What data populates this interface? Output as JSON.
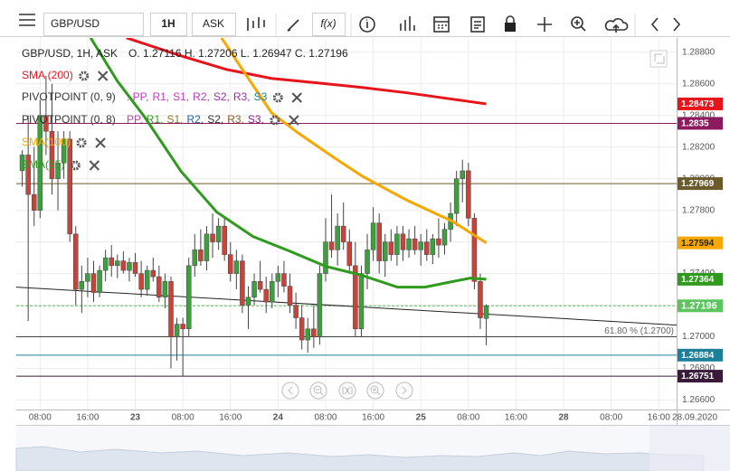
{
  "toolbar": {
    "symbol": "GBP/USD",
    "interval": "1H",
    "side": "ASK",
    "function": "f(x)"
  },
  "chart_data": {
    "type": "candlestick",
    "header": "GBP/USD, 1H, ASK",
    "ohlc_text": "O. 1.27116 H. 1.27206 L. 1.26947 C. 1.27196",
    "up_color": "#3f9e3f",
    "down_color": "#c9433a",
    "xlim": [
      4,
      115
    ],
    "ylim": [
      1.2654,
      1.2889
    ],
    "xticks": [
      {
        "value": 8,
        "label": "08:00"
      },
      {
        "value": 16,
        "label": "16:00"
      },
      {
        "value": 24,
        "label": "23"
      },
      {
        "value": 32,
        "label": "08:00"
      },
      {
        "value": 40,
        "label": "16:00"
      },
      {
        "value": 48,
        "label": "24"
      },
      {
        "value": 56,
        "label": "08:00"
      },
      {
        "value": 64,
        "label": "16:00"
      },
      {
        "value": 72,
        "label": "25"
      },
      {
        "value": 80,
        "label": "08:00"
      },
      {
        "value": 88,
        "label": "16:00"
      },
      {
        "value": 96,
        "label": "28"
      },
      {
        "value": 104,
        "label": "08:00"
      },
      {
        "value": 112,
        "label": "16:00"
      }
    ],
    "date_label": "28.09.2020",
    "yticks": [
      {
        "value": 1.266,
        "label": "1.26600"
      },
      {
        "value": 1.268,
        "label": "1.26800"
      },
      {
        "value": 1.27,
        "label": "1.27000"
      },
      {
        "value": 1.272,
        "label": "1.27200"
      },
      {
        "value": 1.274,
        "label": "1.27400"
      },
      {
        "value": 1.276,
        "label": "1.27600"
      },
      {
        "value": 1.278,
        "label": "1.27800"
      },
      {
        "value": 1.28,
        "label": "1.28000"
      },
      {
        "value": 1.282,
        "label": "1.28200"
      },
      {
        "value": 1.284,
        "label": "1.28400"
      },
      {
        "value": 1.286,
        "label": "1.28600"
      },
      {
        "value": 1.288,
        "label": "1.28800"
      }
    ],
    "grid": true,
    "candles": {
      "x": [
        5,
        6,
        7,
        8,
        9,
        10,
        11,
        12,
        13,
        14,
        15,
        16,
        17,
        18,
        19,
        20,
        21,
        22,
        23,
        24,
        25,
        26,
        27,
        28,
        29,
        30,
        31,
        32,
        33,
        34,
        35,
        36,
        37,
        38,
        39,
        40,
        41,
        42,
        43,
        44,
        45,
        46,
        47,
        48,
        49,
        50,
        51,
        52,
        53,
        54,
        55,
        56,
        57,
        58,
        59,
        60,
        61,
        62,
        63,
        64,
        65,
        66,
        67,
        68,
        69,
        70,
        71,
        72,
        73,
        74,
        75,
        76,
        77,
        78,
        79,
        80,
        81,
        82,
        83
      ],
      "open": [
        1.2805,
        1.2815,
        1.279,
        1.278,
        1.284,
        1.283,
        1.28,
        1.281,
        1.2825,
        1.2765,
        1.273,
        1.2735,
        1.274,
        1.2728,
        1.2742,
        1.275,
        1.2745,
        1.2748,
        1.2742,
        1.2747,
        1.274,
        1.273,
        1.2742,
        1.2738,
        1.2725,
        1.2735,
        1.27,
        1.2708,
        1.2705,
        1.2745,
        1.2755,
        1.2748,
        1.2765,
        1.276,
        1.277,
        1.2752,
        1.274,
        1.2748,
        1.272,
        1.2725,
        1.2735,
        1.273,
        1.2722,
        1.2735,
        1.274,
        1.2732,
        1.272,
        1.2712,
        1.2698,
        1.2705,
        1.27,
        1.274,
        1.276,
        1.2755,
        1.277,
        1.276,
        1.2745,
        1.2705,
        1.274,
        1.2755,
        1.2772,
        1.2748,
        1.276,
        1.2752,
        1.2765,
        1.2755,
        1.2762,
        1.2755,
        1.276,
        1.2752,
        1.2762,
        1.2758,
        1.2768,
        1.2778,
        1.28,
        1.2805,
        1.2775,
        1.2735,
        1.27116
      ],
      "high": [
        1.2818,
        1.284,
        1.282,
        1.285,
        1.2865,
        1.286,
        1.283,
        1.283,
        1.283,
        1.277,
        1.2745,
        1.275,
        1.2748,
        1.2745,
        1.2755,
        1.2758,
        1.2752,
        1.2754,
        1.275,
        1.2753,
        1.2748,
        1.2745,
        1.275,
        1.2745,
        1.274,
        1.2738,
        1.2712,
        1.2712,
        1.275,
        1.2765,
        1.2768,
        1.277,
        1.2778,
        1.2775,
        1.2775,
        1.276,
        1.2755,
        1.2752,
        1.2732,
        1.274,
        1.2748,
        1.2738,
        1.274,
        1.2745,
        1.2748,
        1.274,
        1.2728,
        1.272,
        1.2712,
        1.272,
        1.2745,
        1.2775,
        1.279,
        1.2778,
        1.2785,
        1.2768,
        1.276,
        1.2745,
        1.2765,
        1.2782,
        1.2778,
        1.2765,
        1.2768,
        1.277,
        1.277,
        1.2768,
        1.277,
        1.2765,
        1.2768,
        1.2765,
        1.2775,
        1.2772,
        1.2785,
        1.2805,
        1.2812,
        1.281,
        1.2778,
        1.274,
        1.27206
      ],
      "low": [
        1.2795,
        1.271,
        1.277,
        1.2775,
        1.2815,
        1.279,
        1.278,
        1.28,
        1.276,
        1.272,
        1.2715,
        1.2725,
        1.2722,
        1.2725,
        1.2735,
        1.2738,
        1.2737,
        1.274,
        1.2735,
        1.2738,
        1.2725,
        1.2726,
        1.2735,
        1.2722,
        1.2718,
        1.268,
        1.2685,
        1.2675,
        1.27,
        1.2738,
        1.2745,
        1.2742,
        1.275,
        1.2755,
        1.2748,
        1.2735,
        1.273,
        1.2715,
        1.2705,
        1.272,
        1.2728,
        1.2715,
        1.2718,
        1.2725,
        1.2728,
        1.2715,
        1.2705,
        1.2692,
        1.269,
        1.2693,
        1.2695,
        1.2735,
        1.275,
        1.2745,
        1.2755,
        1.274,
        1.27,
        1.27,
        1.273,
        1.2748,
        1.274,
        1.2738,
        1.2748,
        1.2745,
        1.2748,
        1.275,
        1.2752,
        1.2745,
        1.2748,
        1.2746,
        1.275,
        1.2752,
        1.276,
        1.277,
        1.2785,
        1.277,
        1.273,
        1.2705,
        1.26947
      ],
      "close": [
        1.2815,
        1.279,
        1.278,
        1.284,
        1.283,
        1.28,
        1.281,
        1.2825,
        1.2765,
        1.273,
        1.2735,
        1.274,
        1.2728,
        1.2742,
        1.275,
        1.2745,
        1.2748,
        1.2742,
        1.2747,
        1.274,
        1.273,
        1.2742,
        1.2738,
        1.2725,
        1.2735,
        1.27,
        1.2708,
        1.2705,
        1.2745,
        1.2755,
        1.2748,
        1.2765,
        1.276,
        1.277,
        1.2752,
        1.274,
        1.2748,
        1.272,
        1.2725,
        1.2735,
        1.273,
        1.2722,
        1.2735,
        1.274,
        1.2732,
        1.272,
        1.2712,
        1.2698,
        1.2705,
        1.27,
        1.274,
        1.276,
        1.2755,
        1.277,
        1.276,
        1.2745,
        1.2705,
        1.274,
        1.2755,
        1.2772,
        1.2748,
        1.276,
        1.2752,
        1.2765,
        1.2755,
        1.2762,
        1.2755,
        1.276,
        1.2752,
        1.2762,
        1.2758,
        1.2768,
        1.2778,
        1.28,
        1.2805,
        1.2775,
        1.2735,
        1.2712,
        1.27196
      ]
    },
    "series": [
      {
        "name": "SMA (200)",
        "color": "#e8141c",
        "x": [
          22.5,
          31.7,
          39.3,
          46.9,
          54.5,
          62.1,
          69.7,
          77.3,
          83
        ],
        "values": [
          1.28891,
          1.28777,
          1.28691,
          1.28634,
          1.28606,
          1.28577,
          1.28543,
          1.28503,
          1.28473
        ]
      },
      {
        "name": "SMA(100)",
        "color": "#f7a800",
        "x": [
          38.5,
          42.3,
          46.9,
          51.5,
          57.5,
          62.1,
          69.7,
          77.3,
          83
        ],
        "values": [
          1.28891,
          1.28674,
          1.28417,
          1.28286,
          1.28131,
          1.28017,
          1.27863,
          1.27731,
          1.27594
        ]
      },
      {
        "name": "SMA(55)",
        "color": "#2f9a1e",
        "x": [
          16.5,
          21,
          25.6,
          31.7,
          37.7,
          43.8,
          49.9,
          56,
          62.1,
          68.1,
          72.7,
          77.3,
          80.3,
          83
        ],
        "values": [
          1.28891,
          1.28617,
          1.28389,
          1.28046,
          1.27789,
          1.27634,
          1.27543,
          1.27446,
          1.27389,
          1.27314,
          1.27314,
          1.27349,
          1.27371,
          1.27364
        ]
      }
    ],
    "pivots": [
      {
        "name": "PIVOTPOINT (0, 9)",
        "items": [
          {
            "text": ": PP,",
            "color": "#c23bc2"
          },
          {
            "text": "R1,",
            "color": "#c23bc2"
          },
          {
            "text": "S1,",
            "color": "#c23bc2"
          },
          {
            "text": "R2,",
            "color": "#b23bb2"
          },
          {
            "text": "S2,",
            "color": "#9b2ea6"
          },
          {
            "text": "R3,",
            "color": "#9b2ea6"
          },
          {
            "text": "S3",
            "color": "#1d7f9a"
          }
        ]
      },
      {
        "name": "PIVOTPOINT (0, 8)",
        "items": [
          {
            "text": "PP,",
            "color": "#c23bc2"
          },
          {
            "text": "R1,",
            "color": "#2f9a1e"
          },
          {
            "text": "S1,",
            "color": "#8a7a2a"
          },
          {
            "text": "R2,",
            "color": "#1d5f9a"
          },
          {
            "text": "S2,",
            "color": "#333333"
          },
          {
            "text": "R3,",
            "color": "#8b5a2a"
          },
          {
            "text": "S3,",
            "color": "#8b1a8e"
          }
        ]
      }
    ],
    "trendline": {
      "x": [
        4,
        115
      ],
      "values": [
        1.27314,
        1.27074
      ]
    },
    "fib": {
      "value": 1.27,
      "label": "61.80 % (1.2700)"
    },
    "price_markers": [
      {
        "value": 1.28473,
        "color": "#e8141c",
        "text_color": "#ffffff",
        "line": false
      },
      {
        "value": 1.2835,
        "color": "#8b1a5e",
        "text_color": "#ffffff",
        "line": true
      },
      {
        "value": 1.27969,
        "color": "#6b5a2a",
        "text_color": "#ffffff",
        "line": true
      },
      {
        "value": 1.27594,
        "color": "#f7a800",
        "text_color": "#222222",
        "line": false
      },
      {
        "value": 1.27364,
        "color": "#2f9a1e",
        "text_color": "#ffffff",
        "line": false
      },
      {
        "value": 1.27196,
        "color": "#5cc45c",
        "text_color": "#ffffff",
        "line": true
      },
      {
        "value": 1.26884,
        "color": "#1d7f9a",
        "text_color": "#ffffff",
        "line": true
      },
      {
        "value": 1.26751,
        "color": "#3a1a3a",
        "text_color": "#ffffff",
        "line": true
      }
    ]
  }
}
